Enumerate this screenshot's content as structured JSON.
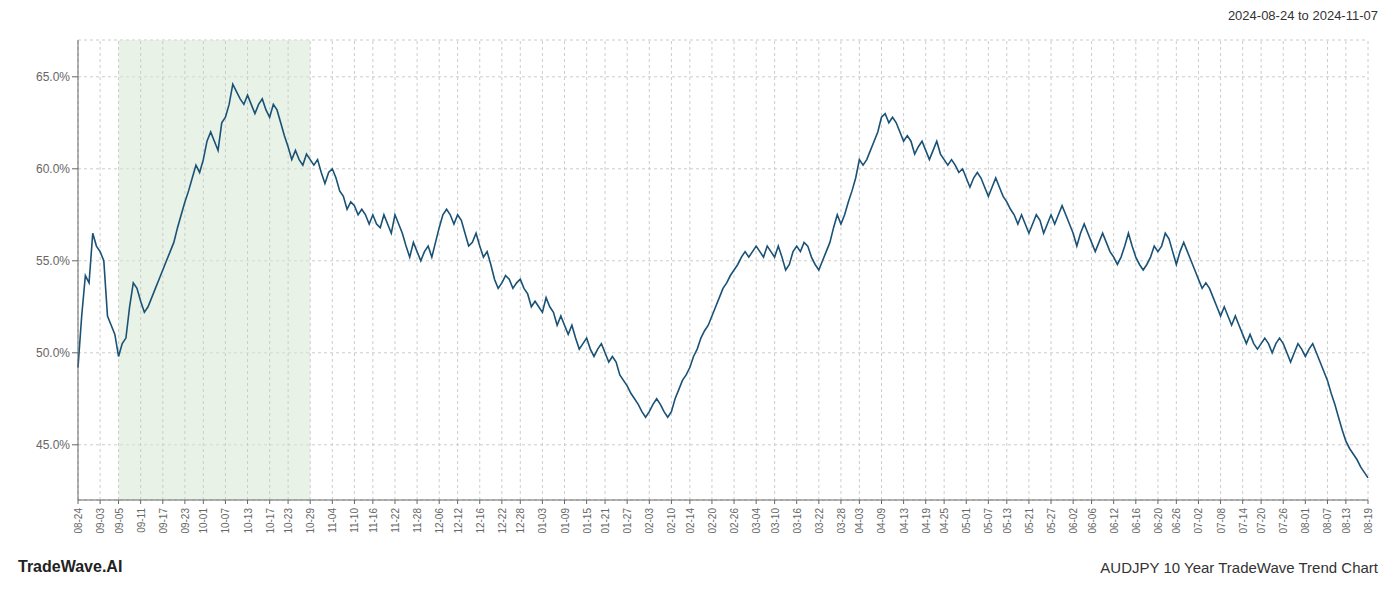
{
  "chart_data": {
    "type": "line",
    "title": "AUDJPY 10 Year TradeWave Trend Chart",
    "subtitle": "2024-08-24 to 2024-11-07",
    "annotations": [
      "TradeWave.AI"
    ],
    "categories": [
      "08-24",
      null,
      null,
      null,
      null,
      null,
      "09-03",
      null,
      null,
      null,
      null,
      "09-05",
      null,
      null,
      null,
      null,
      null,
      "09-11",
      null,
      null,
      null,
      null,
      null,
      "09-17",
      null,
      null,
      null,
      null,
      null,
      "09-23",
      null,
      null,
      null,
      null,
      "10-01",
      null,
      null,
      null,
      null,
      null,
      "10-07",
      null,
      null,
      null,
      null,
      null,
      "10-13",
      null,
      null,
      null,
      null,
      null,
      "10-17",
      null,
      null,
      null,
      null,
      "10-23",
      null,
      null,
      null,
      null,
      null,
      "10-29",
      null,
      null,
      null,
      null,
      null,
      "11-04",
      null,
      null,
      null,
      null,
      null,
      "11-10",
      null,
      null,
      null,
      null,
      "11-16",
      null,
      null,
      null,
      null,
      null,
      "11-22",
      null,
      null,
      null,
      null,
      null,
      "11-28",
      null,
      null,
      null,
      null,
      null,
      "12-06",
      null,
      null,
      null,
      null,
      "12-12",
      null,
      null,
      null,
      null,
      null,
      "12-16",
      null,
      null,
      null,
      null,
      null,
      "12-22",
      null,
      null,
      null,
      null,
      "12-28",
      null,
      null,
      null,
      null,
      null,
      "01-03",
      null,
      null,
      null,
      null,
      null,
      "01-09",
      null,
      null,
      null,
      null,
      null,
      "01-15",
      null,
      null,
      null,
      null,
      "01-21",
      null,
      null,
      null,
      null,
      null,
      "01-27",
      null,
      null,
      null,
      null,
      null,
      "02-03",
      null,
      null,
      null,
      null,
      null,
      "02-10",
      null,
      null,
      null,
      null,
      "02-14",
      null,
      null,
      null,
      null,
      null,
      "02-20",
      null,
      null,
      null,
      null,
      null,
      "02-26",
      null,
      null,
      null,
      null,
      null,
      "03-04",
      null,
      null,
      null,
      null,
      "03-10",
      null,
      null,
      null,
      null,
      null,
      "03-16",
      null,
      null,
      null,
      null,
      null,
      "03-22",
      null,
      null,
      null,
      null,
      null,
      "03-28",
      null,
      null,
      null,
      null,
      "04-03",
      null,
      null,
      null,
      null,
      null,
      "04-09",
      null,
      null,
      null,
      null,
      null,
      "04-13",
      null,
      null,
      null,
      null,
      null,
      "04-19",
      null,
      null,
      null,
      null,
      "04-25",
      null,
      null,
      null,
      null,
      null,
      "05-01",
      null,
      null,
      null,
      null,
      null,
      "05-07",
      null,
      null,
      null,
      null,
      "05-13",
      null,
      null,
      null,
      null,
      null,
      "05-21",
      null,
      null,
      null,
      null,
      null,
      "05-27",
      null,
      null,
      null,
      null,
      null,
      "06-02",
      null,
      null,
      null,
      null,
      "06-06",
      null,
      null,
      null,
      null,
      null,
      "06-12",
      null,
      null,
      null,
      null,
      null,
      "06-16",
      null,
      null,
      null,
      null,
      null,
      "06-20",
      null,
      null,
      null,
      null,
      "06-26",
      null,
      null,
      null,
      null,
      null,
      "07-02",
      null,
      null,
      null,
      null,
      null,
      "07-08",
      null,
      null,
      null,
      null,
      null,
      "07-14",
      null,
      null,
      null,
      null,
      "07-20",
      null,
      null,
      null,
      null,
      null,
      "07-26",
      null,
      null,
      null,
      null,
      null,
      "08-01",
      null,
      null,
      null,
      null,
      null,
      "08-07",
      null,
      null,
      null,
      null,
      "08-13",
      null,
      null,
      null,
      null,
      null,
      "08-19"
    ],
    "values": [
      49.2,
      52.0,
      54.2,
      53.8,
      56.5,
      55.8,
      55.5,
      55.0,
      52.0,
      51.5,
      51.0,
      49.8,
      50.5,
      50.8,
      52.5,
      53.8,
      53.5,
      52.8,
      52.2,
      52.5,
      53.0,
      53.5,
      54.0,
      54.5,
      55.0,
      55.5,
      56.0,
      56.8,
      57.5,
      58.2,
      58.8,
      59.5,
      60.2,
      59.8,
      60.5,
      61.5,
      62.0,
      61.5,
      61.0,
      62.5,
      62.8,
      63.5,
      64.6,
      64.2,
      63.8,
      63.5,
      64.0,
      63.5,
      63.0,
      63.5,
      63.8,
      63.2,
      62.8,
      63.5,
      63.2,
      62.5,
      61.8,
      61.2,
      60.5,
      61.0,
      60.5,
      60.2,
      60.8,
      60.5,
      60.2,
      60.5,
      59.8,
      59.2,
      59.8,
      60.0,
      59.5,
      58.8,
      58.5,
      57.8,
      58.2,
      58.0,
      57.5,
      57.8,
      57.5,
      57.0,
      57.5,
      57.0,
      56.8,
      57.5,
      57.0,
      56.5,
      57.5,
      57.0,
      56.5,
      55.8,
      55.2,
      56.0,
      55.5,
      55.0,
      55.5,
      55.8,
      55.2,
      56.0,
      56.8,
      57.5,
      57.8,
      57.5,
      57.0,
      57.5,
      57.2,
      56.5,
      55.8,
      56.0,
      56.5,
      55.8,
      55.2,
      55.5,
      54.8,
      54.0,
      53.5,
      53.8,
      54.2,
      54.0,
      53.5,
      53.8,
      54.0,
      53.5,
      53.2,
      52.5,
      52.8,
      52.5,
      52.2,
      53.0,
      52.5,
      52.2,
      51.5,
      52.0,
      51.5,
      51.0,
      51.5,
      50.8,
      50.2,
      50.5,
      50.8,
      50.2,
      49.8,
      50.2,
      50.5,
      50.0,
      49.5,
      49.8,
      49.5,
      48.8,
      48.5,
      48.2,
      47.8,
      47.5,
      47.2,
      46.8,
      46.5,
      46.8,
      47.2,
      47.5,
      47.2,
      46.8,
      46.5,
      46.8,
      47.5,
      48.0,
      48.5,
      48.8,
      49.2,
      49.8,
      50.2,
      50.8,
      51.2,
      51.5,
      52.0,
      52.5,
      53.0,
      53.5,
      53.8,
      54.2,
      54.5,
      54.8,
      55.2,
      55.5,
      55.2,
      55.5,
      55.8,
      55.5,
      55.2,
      55.8,
      55.5,
      55.2,
      55.8,
      55.2,
      54.5,
      54.8,
      55.5,
      55.8,
      55.5,
      56.0,
      55.8,
      55.2,
      54.8,
      54.5,
      55.0,
      55.5,
      56.0,
      56.8,
      57.5,
      57.0,
      57.5,
      58.2,
      58.8,
      59.5,
      60.5,
      60.2,
      60.5,
      61.0,
      61.5,
      62.0,
      62.8,
      63.0,
      62.5,
      62.8,
      62.5,
      62.0,
      61.5,
      61.8,
      61.5,
      60.8,
      61.2,
      61.5,
      61.0,
      60.5,
      61.0,
      61.5,
      60.8,
      60.5,
      60.2,
      60.5,
      60.2,
      59.8,
      60.0,
      59.5,
      59.0,
      59.5,
      59.8,
      59.5,
      59.0,
      58.5,
      59.0,
      59.5,
      59.0,
      58.5,
      58.2,
      57.8,
      57.5,
      57.0,
      57.5,
      57.0,
      56.5,
      57.0,
      57.5,
      57.2,
      56.5,
      57.0,
      57.5,
      57.0,
      57.5,
      58.0,
      57.5,
      57.0,
      56.5,
      55.8,
      56.5,
      57.0,
      56.5,
      56.0,
      55.5,
      56.0,
      56.5,
      56.0,
      55.5,
      55.2,
      54.8,
      55.2,
      55.8,
      56.5,
      55.8,
      55.2,
      54.8,
      54.5,
      54.8,
      55.2,
      55.8,
      55.5,
      55.8,
      56.5,
      56.2,
      55.5,
      54.8,
      55.5,
      56.0,
      55.5,
      55.0,
      54.5,
      54.0,
      53.5,
      53.8,
      53.5,
      53.0,
      52.5,
      52.0,
      52.5,
      52.0,
      51.5,
      52.0,
      51.5,
      51.0,
      50.5,
      51.0,
      50.5,
      50.2,
      50.5,
      50.8,
      50.5,
      50.0,
      50.5,
      50.8,
      50.5,
      50.0,
      49.5,
      50.0,
      50.5,
      50.2,
      49.8,
      50.2,
      50.5,
      50.0,
      49.5,
      49.0,
      48.5,
      47.8,
      47.2,
      46.5,
      45.8,
      45.2,
      44.8,
      44.5,
      44.2,
      43.8,
      43.5,
      43.2
    ],
    "color": "#1a5276",
    "shade": {
      "from": "09-05",
      "to": "10-29",
      "color": "#d5e8d4"
    },
    "ylim": [
      42.0,
      67.0
    ],
    "yticks": [
      {
        "value": 45.0,
        "label": "45.0%"
      },
      {
        "value": 50.0,
        "label": "50.0%"
      },
      {
        "value": 55.0,
        "label": "55.0%"
      },
      {
        "value": 60.0,
        "label": "60.0%"
      },
      {
        "value": 65.0,
        "label": "65.0%"
      }
    ],
    "grid": true
  }
}
